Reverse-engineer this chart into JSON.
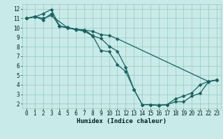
{
  "bg_color": "#c8eae8",
  "grid_color": "#96c8c0",
  "line_color": "#1a6060",
  "xlabel": "Humidex (Indice chaleur)",
  "xlim_min": -0.5,
  "xlim_max": 23.5,
  "ylim_min": 1.5,
  "ylim_max": 12.5,
  "xticks": [
    0,
    1,
    2,
    3,
    4,
    5,
    6,
    7,
    8,
    9,
    10,
    11,
    12,
    13,
    14,
    15,
    16,
    17,
    18,
    19,
    20,
    21,
    22,
    23
  ],
  "yticks": [
    2,
    3,
    4,
    5,
    6,
    7,
    8,
    9,
    10,
    11,
    12
  ],
  "line1_x": [
    0,
    1,
    2,
    3,
    5,
    6,
    7,
    8,
    9,
    10,
    11,
    22,
    23
  ],
  "line1_y": [
    11.0,
    11.2,
    11.0,
    11.3,
    10.0,
    9.85,
    9.75,
    9.65,
    9.3,
    9.2,
    8.85,
    4.35,
    4.5
  ],
  "line2_x": [
    0,
    1,
    2,
    3,
    4,
    5,
    6,
    7,
    8,
    9,
    10,
    11,
    12,
    13,
    14,
    15,
    16,
    17,
    18,
    19,
    20,
    21,
    22,
    23
  ],
  "line2_y": [
    11.0,
    11.15,
    11.5,
    11.95,
    10.2,
    10.05,
    9.85,
    9.8,
    9.2,
    7.6,
    7.5,
    6.1,
    5.4,
    3.5,
    1.9,
    1.9,
    1.8,
    1.9,
    2.2,
    2.2,
    2.8,
    3.1,
    4.3,
    4.5
  ],
  "line3_x": [
    0,
    1,
    2,
    3,
    4,
    5,
    6,
    7,
    8,
    9,
    10,
    11,
    12,
    13,
    14,
    15,
    16,
    17,
    18,
    19,
    20,
    21,
    22,
    23
  ],
  "line3_y": [
    11.0,
    11.2,
    10.85,
    11.5,
    10.15,
    10.0,
    9.8,
    9.65,
    9.15,
    8.9,
    8.05,
    7.55,
    5.85,
    3.5,
    1.9,
    1.9,
    1.85,
    1.9,
    2.5,
    2.8,
    3.15,
    4.0,
    4.35,
    4.5
  ],
  "markersize": 2.5,
  "linewidth": 0.9,
  "xlabel_fontsize": 6.5,
  "tick_fontsize": 5.5
}
